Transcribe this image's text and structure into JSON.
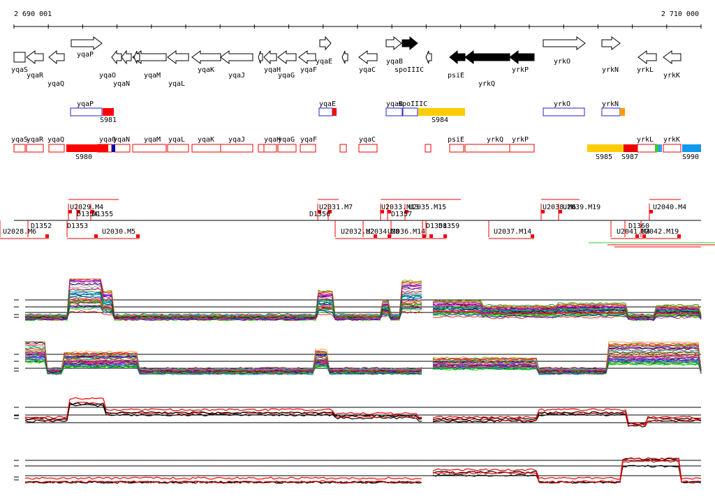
{
  "ruler": {
    "start": "2 690 001",
    "end": "2 710 000"
  },
  "genes": [
    "yqaS",
    "yqaR",
    "yqaQ",
    "yqaP",
    "yqaO",
    "yqaN",
    "yqaM",
    "yqaL",
    "yqaK",
    "yqaJ",
    "yqaH",
    "yqaG",
    "yqaF",
    "yqaE",
    "yqaC",
    "yqaB",
    "spoIIIC",
    "psiE",
    "yrkQ",
    "yrkP",
    "yrkO",
    "yrkN",
    "yrkL",
    "yrkK"
  ],
  "upper_track": {
    "genes": [
      "yqaP",
      "yqaE",
      "yqaB",
      "spoIIIC",
      "yrkO",
      "yrkN"
    ],
    "segments": [
      "S981",
      "S984"
    ]
  },
  "lower_track": {
    "genes": [
      "yqaS",
      "yqaR",
      "yqaQ",
      "yqaO",
      "yqaN",
      "yqaM",
      "yqaL",
      "yqaK",
      "yqaJ",
      "yqaH",
      "yqaG",
      "yqaF",
      "yqaC",
      "psiE",
      "yrkQ",
      "yrkP",
      "yrkL",
      "yrkK"
    ],
    "segments": [
      "S980",
      "S985",
      "S987",
      "S990"
    ]
  },
  "features": [
    "U2029.M4",
    "D1354",
    "D1355",
    "D1353",
    "D1352",
    "U2028.M6",
    "U2030.M5",
    "U2031.M7",
    "D1356",
    "U2033.M13",
    "U2035.M15",
    "D1357",
    "U2032.M2",
    "U2034.M8",
    "U2036.M14",
    "D1358",
    "D1359",
    "U2037.M14",
    "U2038.M6",
    "U2039.M19",
    "U2040.M4",
    "D1360",
    "U2041.M4",
    "U2042.M19"
  ]
}
